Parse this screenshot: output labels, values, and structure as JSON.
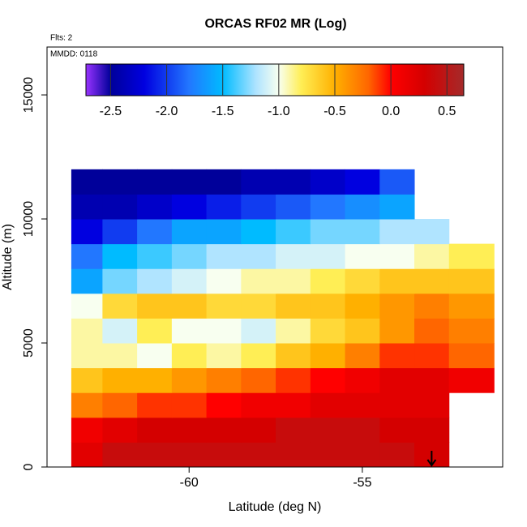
{
  "chart_data": {
    "type": "heatmap",
    "title": "ORCAS RF02 MR (Log)",
    "annotations": [
      "Flts: 2",
      "MMDD: 0118"
    ],
    "xlabel": "Latitude (deg N)",
    "ylabel": "Altitude (m)",
    "xlim": [
      -64.1,
      -50.95
    ],
    "ylim": [
      0,
      16930
    ],
    "xticks": [
      -60,
      -55
    ],
    "yticks": [
      0,
      5000,
      10000,
      15000
    ],
    "x_bins": [
      -63.4,
      -62.5,
      -61.5,
      -60.5,
      -59.5,
      -58.5,
      -57.5,
      -56.5,
      -55.5,
      -54.5,
      -53.5,
      -52.5,
      -51.2
    ],
    "y_bins": [
      0,
      1000,
      2000,
      3000,
      4000,
      5000,
      6000,
      7000,
      8000,
      9000,
      10000,
      11000,
      12000
    ],
    "values": [
      [
        0.2,
        0.4,
        0.4,
        0.4,
        0.4,
        0.4,
        0.4,
        0.4,
        0.4,
        0.4,
        0.3,
        null
      ],
      [
        0.1,
        0.2,
        0.3,
        0.3,
        0.3,
        0.3,
        0.4,
        0.4,
        0.4,
        0.3,
        0.3,
        null
      ],
      [
        -0.3,
        -0.2,
        -0.1,
        -0.1,
        0,
        0.1,
        0.1,
        0.2,
        0.2,
        0.2,
        0.2,
        null
      ],
      [
        -0.6,
        -0.5,
        -0.5,
        -0.4,
        -0.3,
        -0.2,
        -0.1,
        0,
        0.1,
        0.2,
        0.2,
        0.1
      ],
      [
        -0.9,
        -0.9,
        -1.0,
        -0.8,
        -0.9,
        -0.8,
        -0.6,
        -0.5,
        -0.3,
        -0.1,
        -0.1,
        -0.2
      ],
      [
        -0.9,
        -1.1,
        -0.8,
        -1.0,
        -1.0,
        -1.1,
        -0.9,
        -0.7,
        -0.6,
        -0.4,
        -0.2,
        -0.3
      ],
      [
        -1.0,
        -0.7,
        -0.6,
        -0.6,
        -0.7,
        -0.7,
        -0.6,
        -0.6,
        -0.5,
        -0.4,
        -0.3,
        -0.4
      ],
      [
        -1.6,
        -1.3,
        -1.2,
        -1.1,
        -1.0,
        -0.9,
        -0.9,
        -0.8,
        -0.7,
        -0.6,
        -0.6,
        -0.6
      ],
      [
        -1.8,
        -1.5,
        -1.4,
        -1.3,
        -1.2,
        -1.2,
        -1.1,
        -1.1,
        -1.0,
        -1.0,
        -0.9,
        -0.8
      ],
      [
        -2.2,
        -2.0,
        -1.8,
        -1.6,
        -1.6,
        -1.5,
        -1.4,
        -1.3,
        -1.3,
        -1.2,
        -1.2,
        null
      ],
      [
        -2.4,
        -2.4,
        -2.3,
        -2.2,
        -2.1,
        -2.0,
        -1.9,
        -1.8,
        -1.7,
        -1.6,
        null,
        null
      ],
      [
        -2.5,
        -2.5,
        -2.5,
        -2.5,
        -2.5,
        -2.4,
        -2.4,
        -2.3,
        -2.2,
        -1.9,
        null,
        null
      ]
    ],
    "colorbar_lim": [
      -2.72,
      0.65
    ],
    "colorbar_ticks": [
      -2.5,
      {
        "value": -2.0,
        "label": "-2.0"
      },
      -1.5,
      {
        "value": -1.0,
        "label": "-1.0"
      },
      -0.5,
      {
        "value": 0,
        "label": "0.0"
      },
      0.5
    ],
    "colorscale": [
      [
        -2.72,
        "#9933ff"
      ],
      [
        -2.5,
        "#00009a"
      ],
      [
        -2.2,
        "#0000e0"
      ],
      [
        -1.8,
        "#2277ff"
      ],
      [
        -1.5,
        "#00bbff"
      ],
      [
        -1.2,
        "#b0e4ff"
      ],
      [
        -1.0,
        "#f8fff0"
      ],
      [
        -0.8,
        "#ffee55"
      ],
      [
        -0.5,
        "#ffb000"
      ],
      [
        -0.2,
        "#ff6600"
      ],
      [
        0,
        "#ff0000"
      ],
      [
        0.3,
        "#d40000"
      ],
      [
        0.65,
        "#a52a2a"
      ]
    ],
    "arrow_x": -53.0
  }
}
